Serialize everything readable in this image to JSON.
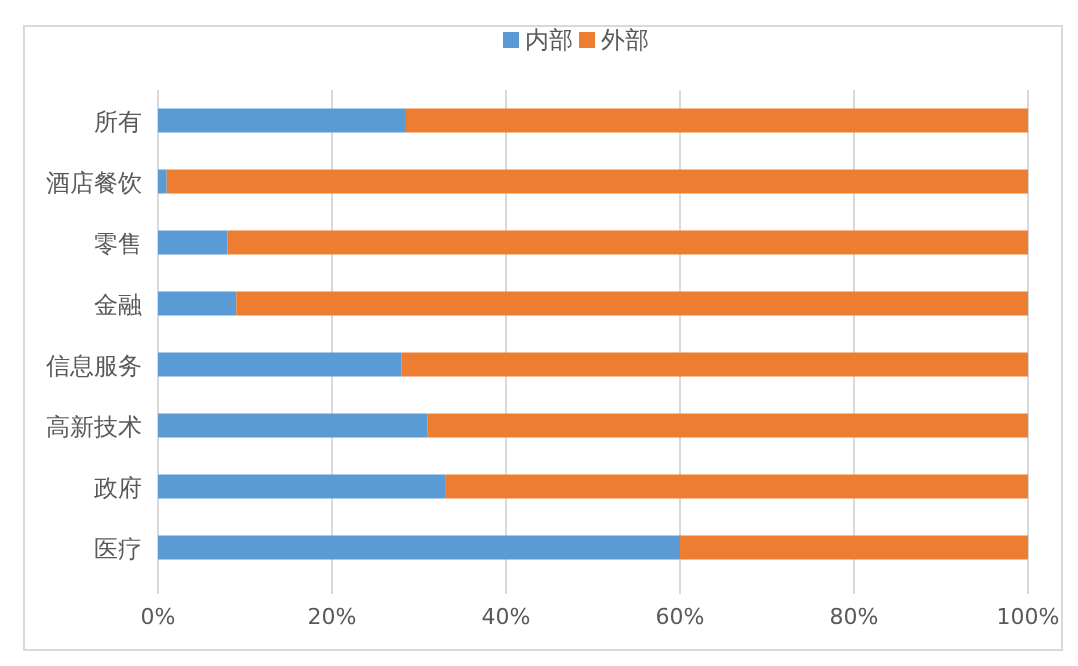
{
  "chart_data": {
    "type": "bar",
    "orientation": "horizontal",
    "stacked": true,
    "categories": [
      "所有",
      "酒店餐饮",
      "零售",
      "金融",
      "信息服务",
      "高新技术",
      "政府",
      "医疗"
    ],
    "series": [
      {
        "name": "内部",
        "color": "#5b9bd5",
        "values": [
          28.5,
          1,
          8,
          9,
          28,
          31,
          33,
          60
        ]
      },
      {
        "name": "外部",
        "color": "#ed7d31",
        "values": [
          71.5,
          99,
          92,
          91,
          72,
          69,
          67,
          40
        ]
      }
    ],
    "xlim": [
      0,
      100
    ],
    "xticks": [
      {
        "value": 0,
        "label": "0%"
      },
      {
        "value": 20,
        "label": "20%"
      },
      {
        "value": 40,
        "label": "40%"
      },
      {
        "value": 60,
        "label": "60%"
      },
      {
        "value": 80,
        "label": "80%"
      },
      {
        "value": 100,
        "label": "100%"
      }
    ],
    "grid": "x",
    "legend": "top"
  }
}
